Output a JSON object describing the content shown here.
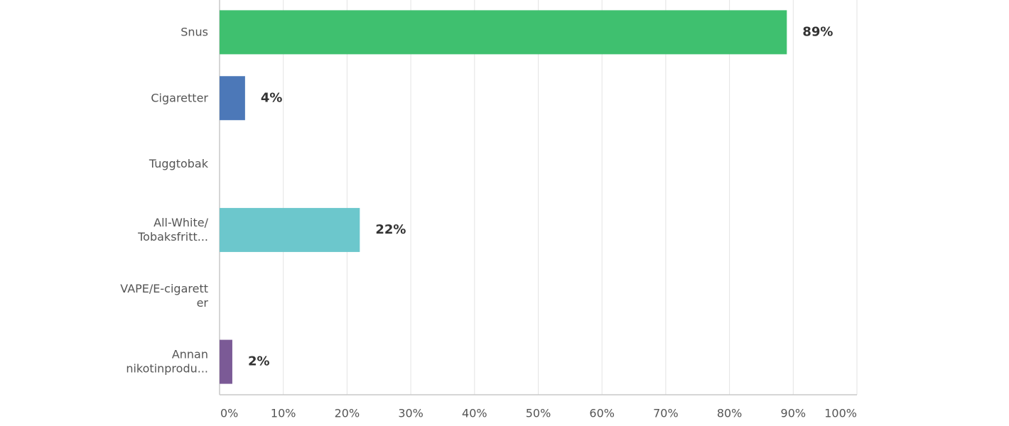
{
  "chart_data": {
    "type": "hbar",
    "categories": [
      "Snus",
      "Cigaretter",
      "Tuggtobak",
      "All-White/\nTobaksfritt...",
      "VAPE/E-cigarett\ner",
      "Annan\nnikotinprodu..."
    ],
    "values": [
      89,
      4,
      null,
      22,
      null,
      2
    ],
    "value_labels": [
      "89%",
      "4%",
      null,
      "22%",
      null,
      "2%"
    ],
    "colors": [
      "#3fc06f",
      "#4c78b8",
      null,
      "#6cc7cc",
      null,
      "#7b5a96"
    ],
    "xlim": [
      0,
      100
    ],
    "xticks": [
      {
        "value": 0,
        "label": "0%"
      },
      {
        "value": 10,
        "label": "10%"
      },
      {
        "value": 20,
        "label": "20%"
      },
      {
        "value": 30,
        "label": "30%"
      },
      {
        "value": 40,
        "label": "40%"
      },
      {
        "value": 50,
        "label": "50%"
      },
      {
        "value": 60,
        "label": "60%"
      },
      {
        "value": 70,
        "label": "70%"
      },
      {
        "value": 80,
        "label": "80%"
      },
      {
        "value": 90,
        "label": "90%"
      },
      {
        "value": 100,
        "label": "100%"
      }
    ],
    "grid": true
  }
}
